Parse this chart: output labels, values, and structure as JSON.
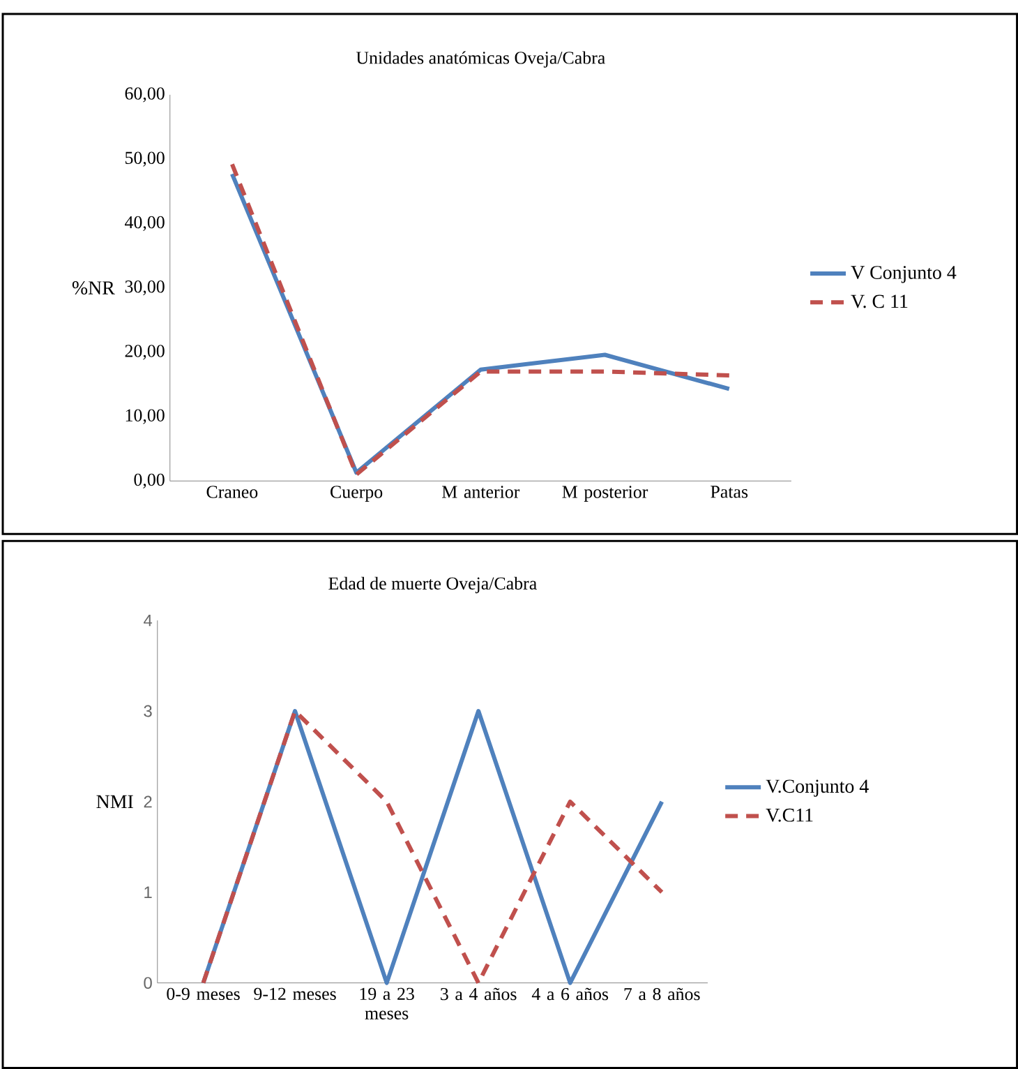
{
  "chart_data": [
    {
      "type": "line",
      "title": "Unidades anatómicas Oveja/Cabra",
      "ylabel": "%NR",
      "categories": [
        "Craneo",
        "Cuerpo",
        "M anterior",
        "M posterior",
        "Patas"
      ],
      "series": [
        {
          "name": "V Conjunto 4",
          "color": "#4f81bd",
          "line_style": "solid",
          "values": [
            47.7,
            1.3,
            17.3,
            19.6,
            14.3
          ]
        },
        {
          "name": "V. C 11",
          "color": "#c0504d",
          "line_style": "dashed",
          "values": [
            49.2,
            1.0,
            17.0,
            17.0,
            16.4
          ]
        }
      ],
      "ylim": [
        0,
        60
      ],
      "yticks": [
        {
          "value": 0,
          "label": "0,00"
        },
        {
          "value": 10,
          "label": "10,00"
        },
        {
          "value": 20,
          "label": "20,00"
        },
        {
          "value": 30,
          "label": "30,00"
        },
        {
          "value": 40,
          "label": "40,00"
        },
        {
          "value": 50,
          "label": "50,00"
        },
        {
          "value": 60,
          "label": "60,00"
        }
      ],
      "grid": false,
      "legend": "right",
      "marker": "none"
    },
    {
      "type": "line",
      "title": "Edad de muerte Oveja/Cabra",
      "ylabel": "NMI",
      "categories": [
        "0-9 meses",
        "9-12 meses",
        "19 a 23 meses",
        "3 a 4 años",
        "4 a 6 años",
        "7 a 8 años"
      ],
      "series": [
        {
          "name": "V.Conjunto 4",
          "color": "#4f81bd",
          "line_style": "solid",
          "values": [
            0,
            3,
            0,
            3,
            0,
            2
          ]
        },
        {
          "name": "V.C11",
          "color": "#c0504d",
          "line_style": "dashed",
          "values": [
            0,
            3,
            2,
            0,
            2,
            1
          ]
        }
      ],
      "ylim": [
        0,
        4
      ],
      "yticks": [
        0,
        1,
        2,
        3,
        4
      ],
      "grid": false,
      "legend": "right",
      "marker": "none"
    }
  ]
}
